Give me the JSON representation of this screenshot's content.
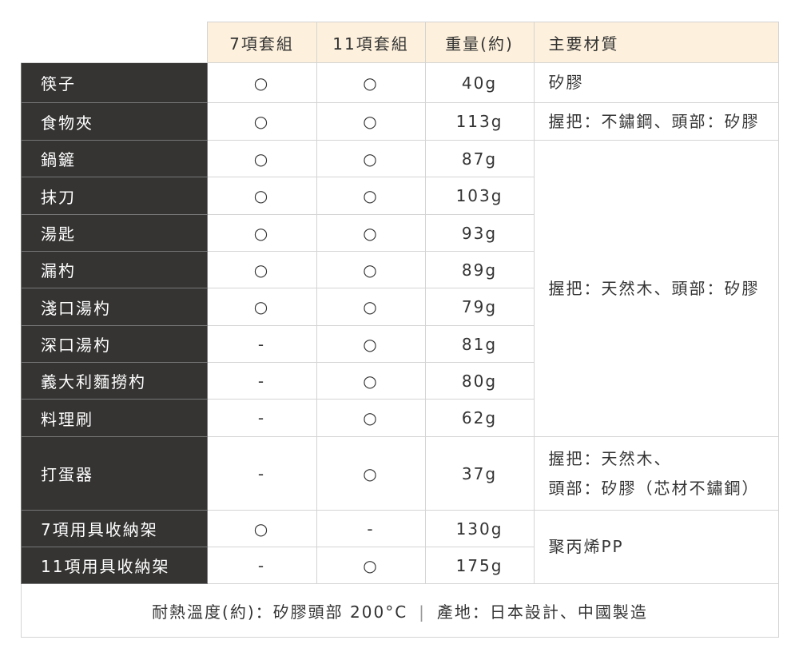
{
  "header": {
    "col_7set": "7項套組",
    "col_11set": "11項套組",
    "col_weight": "重量(約)",
    "col_material": "主要材質"
  },
  "rows": [
    {
      "name": "筷子",
      "set7": "○",
      "set11": "○",
      "weight": "40g"
    },
    {
      "name": "食物夾",
      "set7": "○",
      "set11": "○",
      "weight": "113g"
    },
    {
      "name": "鍋鏟",
      "set7": "○",
      "set11": "○",
      "weight": "87g"
    },
    {
      "name": "抹刀",
      "set7": "○",
      "set11": "○",
      "weight": "103g"
    },
    {
      "name": "湯匙",
      "set7": "○",
      "set11": "○",
      "weight": "93g"
    },
    {
      "name": "漏杓",
      "set7": "○",
      "set11": "○",
      "weight": "89g"
    },
    {
      "name": "淺口湯杓",
      "set7": "○",
      "set11": "○",
      "weight": "79g"
    },
    {
      "name": "深口湯杓",
      "set7": "-",
      "set11": "○",
      "weight": "81g"
    },
    {
      "name": "義大利麵撈杓",
      "set7": "-",
      "set11": "○",
      "weight": "80g"
    },
    {
      "name": "料理刷",
      "set7": "-",
      "set11": "○",
      "weight": "62g"
    },
    {
      "name": "打蛋器",
      "set7": "-",
      "set11": "○",
      "weight": "37g"
    },
    {
      "name": "7項用具收納架",
      "set7": "○",
      "set11": "-",
      "weight": "130g"
    },
    {
      "name": "11項用具收納架",
      "set7": "-",
      "set11": "○",
      "weight": "175g"
    }
  ],
  "materials": [
    {
      "start": 0,
      "span": 1,
      "lines": [
        "矽膠"
      ]
    },
    {
      "start": 1,
      "span": 1,
      "lines": [
        "握把：不鏽鋼、頭部：矽膠"
      ]
    },
    {
      "start": 2,
      "span": 8,
      "lines": [
        "握把：天然木、頭部：矽膠"
      ]
    },
    {
      "start": 10,
      "span": 1,
      "lines": [
        "握把：天然木、",
        "頭部：矽膠（芯材不鏽鋼）"
      ]
    },
    {
      "start": 11,
      "span": 2,
      "lines": [
        "聚丙烯PP"
      ]
    }
  ],
  "footer": {
    "heat": "耐熱溫度(約)：矽膠頭部 200°C",
    "separator": "|",
    "origin": "產地：日本設計、中國製造"
  },
  "colors": {
    "header_bg": "#fdf0dc",
    "name_bg": "#353433"
  }
}
